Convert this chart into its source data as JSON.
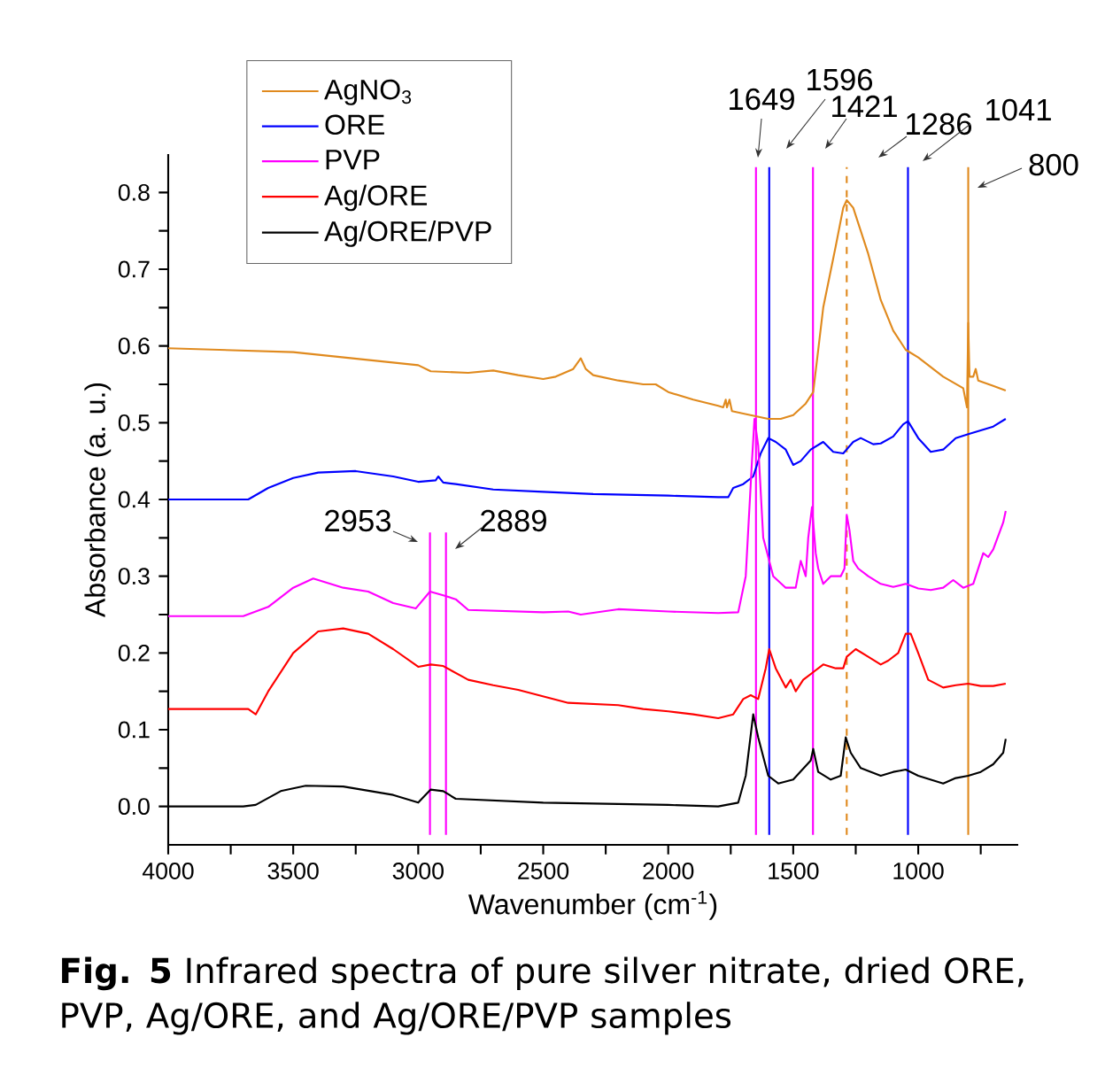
{
  "chart_data": {
    "type": "line",
    "xlabel": "Wavenumber (cm$^{-1}$)",
    "ylabel": "Absorbance (a. u.)",
    "annotations": [
      "**Fig. 5** Infrared spectra of pure silver nitrate, dried ORE, PVP, Ag/ORE, and Ag/ORE/PVP samples"
    ],
    "xlim": [
      4000,
      600
    ],
    "ylim": [
      -0.05,
      0.85
    ],
    "xticks": [
      4000,
      {
        "value": 3750,
        "label": null
      },
      3500,
      {
        "value": 3250,
        "label": null
      },
      3000,
      {
        "value": 2750,
        "label": null
      },
      2500,
      {
        "value": 2250,
        "label": null
      },
      2000,
      {
        "value": 1750,
        "label": null
      },
      1500,
      {
        "value": 1250,
        "label": null
      },
      1000,
      {
        "value": 750,
        "label": null
      }
    ],
    "yticks": [
      {
        "value": 0,
        "label": "0.0"
      },
      {
        "value": 0.05,
        "label": null
      },
      0.1,
      {
        "value": 0.15,
        "label": null
      },
      0.2,
      {
        "value": 0.25,
        "label": null
      },
      0.3,
      {
        "value": 0.35,
        "label": null
      },
      0.4,
      {
        "value": 0.45,
        "label": null
      },
      0.5,
      {
        "value": 0.55,
        "label": null
      },
      0.6,
      {
        "value": 0.65,
        "label": null
      },
      0.7,
      {
        "value": 0.75,
        "label": null
      },
      0.8
    ],
    "legend": "top left",
    "grid": false,
    "marker": "none",
    "line_style": "solid",
    "ref_lines": [
      {
        "axis": "x",
        "value": 1649,
        "label": "1649",
        "color": "#ff00ff"
      },
      {
        "axis": "x",
        "value": 1596,
        "label": "1596",
        "color": "#0000ff"
      },
      {
        "axis": "x",
        "value": 1421,
        "label": "1421",
        "color": "#ff00ff"
      },
      {
        "axis": "x",
        "value": 1286,
        "label": "1286",
        "color": "#e08a1e",
        "line_style": "dashed"
      },
      {
        "axis": "x",
        "value": 1041,
        "label": "1041",
        "color": "#0000ff"
      },
      {
        "axis": "x",
        "value": 800,
        "label": "800",
        "color": "#e08a1e"
      },
      {
        "axis": "x",
        "value": 2953,
        "label": "2953",
        "color": "#ff00ff"
      },
      {
        "axis": "x",
        "value": 2889,
        "label": "2889",
        "color": "#ff00ff"
      }
    ],
    "series": [
      {
        "name": "AgNO$_{3}$",
        "color": "#e08a1e",
        "x": [
          4000,
          3500,
          3000,
          2950,
          2800,
          2700,
          2600,
          2500,
          2450,
          2380,
          2350,
          2330,
          2300,
          2200,
          2100,
          2050,
          2000,
          1900,
          1800,
          1780,
          1770,
          1765,
          1755,
          1745,
          1700,
          1600,
          1550,
          1500,
          1450,
          1420,
          1380,
          1330,
          1300,
          1286,
          1260,
          1200,
          1150,
          1100,
          1050,
          1000,
          900,
          820,
          805,
          800,
          795,
          780,
          770,
          760,
          700,
          650
        ],
        "values": [
          0.597,
          0.592,
          0.575,
          0.567,
          0.565,
          0.568,
          0.562,
          0.557,
          0.56,
          0.57,
          0.584,
          0.57,
          0.562,
          0.555,
          0.55,
          0.55,
          0.54,
          0.53,
          0.522,
          0.52,
          0.53,
          0.52,
          0.53,
          0.515,
          0.512,
          0.505,
          0.505,
          0.51,
          0.525,
          0.54,
          0.65,
          0.73,
          0.78,
          0.79,
          0.78,
          0.72,
          0.66,
          0.62,
          0.595,
          0.585,
          0.56,
          0.545,
          0.52,
          0.63,
          0.56,
          0.56,
          0.57,
          0.555,
          0.548,
          0.542
        ]
      },
      {
        "name": "ORE",
        "color": "#0000ff",
        "x": [
          4000,
          3680,
          3600,
          3500,
          3400,
          3250,
          3100,
          3000,
          2930,
          2920,
          2900,
          2850,
          2700,
          2500,
          2300,
          2000,
          1800,
          1760,
          1740,
          1700,
          1660,
          1630,
          1600,
          1570,
          1530,
          1500,
          1470,
          1430,
          1380,
          1340,
          1300,
          1260,
          1230,
          1180,
          1150,
          1100,
          1060,
          1041,
          1000,
          950,
          900,
          850,
          800,
          750,
          700,
          650
        ],
        "values": [
          0.4,
          0.4,
          0.415,
          0.428,
          0.435,
          0.437,
          0.43,
          0.423,
          0.425,
          0.43,
          0.422,
          0.42,
          0.413,
          0.41,
          0.407,
          0.405,
          0.403,
          0.403,
          0.415,
          0.42,
          0.43,
          0.46,
          0.48,
          0.475,
          0.465,
          0.445,
          0.45,
          0.465,
          0.475,
          0.462,
          0.46,
          0.475,
          0.48,
          0.472,
          0.473,
          0.482,
          0.498,
          0.502,
          0.48,
          0.462,
          0.465,
          0.48,
          0.485,
          0.49,
          0.495,
          0.505
        ]
      },
      {
        "name": "PVP",
        "color": "#ff00ff",
        "x": [
          4000,
          3700,
          3600,
          3500,
          3420,
          3300,
          3200,
          3100,
          3010,
          2953,
          2900,
          2850,
          2800,
          2500,
          2400,
          2350,
          2200,
          2000,
          1800,
          1720,
          1690,
          1665,
          1655,
          1640,
          1620,
          1580,
          1530,
          1490,
          1470,
          1450,
          1440,
          1425,
          1410,
          1400,
          1380,
          1350,
          1310,
          1295,
          1286,
          1275,
          1260,
          1240,
          1200,
          1150,
          1100,
          1050,
          1000,
          950,
          900,
          860,
          820,
          780,
          740,
          720,
          700,
          660,
          650
        ],
        "values": [
          0.248,
          0.248,
          0.26,
          0.285,
          0.297,
          0.285,
          0.28,
          0.265,
          0.258,
          0.28,
          0.275,
          0.27,
          0.256,
          0.253,
          0.254,
          0.25,
          0.257,
          0.254,
          0.252,
          0.253,
          0.3,
          0.45,
          0.505,
          0.47,
          0.35,
          0.3,
          0.285,
          0.285,
          0.32,
          0.3,
          0.35,
          0.39,
          0.33,
          0.31,
          0.29,
          0.3,
          0.3,
          0.31,
          0.38,
          0.36,
          0.32,
          0.31,
          0.3,
          0.29,
          0.286,
          0.29,
          0.284,
          0.282,
          0.285,
          0.295,
          0.285,
          0.29,
          0.33,
          0.325,
          0.335,
          0.37,
          0.385
        ]
      },
      {
        "name": "Ag/ORE",
        "color": "#ff0000",
        "x": [
          4000,
          3680,
          3650,
          3600,
          3500,
          3400,
          3300,
          3200,
          3100,
          3000,
          2950,
          2900,
          2800,
          2700,
          2600,
          2400,
          2200,
          2100,
          2000,
          1900,
          1800,
          1740,
          1700,
          1670,
          1640,
          1610,
          1596,
          1570,
          1530,
          1510,
          1490,
          1460,
          1420,
          1380,
          1330,
          1300,
          1286,
          1250,
          1200,
          1150,
          1120,
          1080,
          1050,
          1030,
          1000,
          960,
          900,
          850,
          800,
          750,
          700,
          650
        ],
        "values": [
          0.127,
          0.127,
          0.12,
          0.15,
          0.2,
          0.228,
          0.232,
          0.225,
          0.205,
          0.182,
          0.185,
          0.183,
          0.165,
          0.158,
          0.152,
          0.135,
          0.132,
          0.127,
          0.124,
          0.12,
          0.115,
          0.12,
          0.14,
          0.145,
          0.14,
          0.18,
          0.205,
          0.18,
          0.155,
          0.165,
          0.15,
          0.165,
          0.175,
          0.185,
          0.18,
          0.18,
          0.195,
          0.205,
          0.195,
          0.185,
          0.19,
          0.2,
          0.225,
          0.225,
          0.2,
          0.165,
          0.155,
          0.158,
          0.16,
          0.157,
          0.157,
          0.16
        ]
      },
      {
        "name": "Ag/ORE/PVP",
        "color": "#000000",
        "x": [
          4000,
          3700,
          3650,
          3550,
          3450,
          3300,
          3100,
          3000,
          2950,
          2900,
          2850,
          2500,
          2000,
          1800,
          1720,
          1690,
          1660,
          1640,
          1600,
          1560,
          1500,
          1430,
          1420,
          1400,
          1350,
          1310,
          1290,
          1270,
          1230,
          1150,
          1100,
          1050,
          1000,
          900,
          850,
          800,
          750,
          700,
          660,
          650
        ],
        "values": [
          0.0,
          0.0,
          0.002,
          0.02,
          0.027,
          0.026,
          0.015,
          0.005,
          0.022,
          0.02,
          0.01,
          0.005,
          0.002,
          0.0,
          0.005,
          0.04,
          0.12,
          0.09,
          0.04,
          0.03,
          0.035,
          0.06,
          0.075,
          0.045,
          0.035,
          0.04,
          0.09,
          0.07,
          0.05,
          0.04,
          0.045,
          0.048,
          0.04,
          0.03,
          0.037,
          0.04,
          0.045,
          0.055,
          0.07,
          0.088
        ]
      }
    ]
  }
}
